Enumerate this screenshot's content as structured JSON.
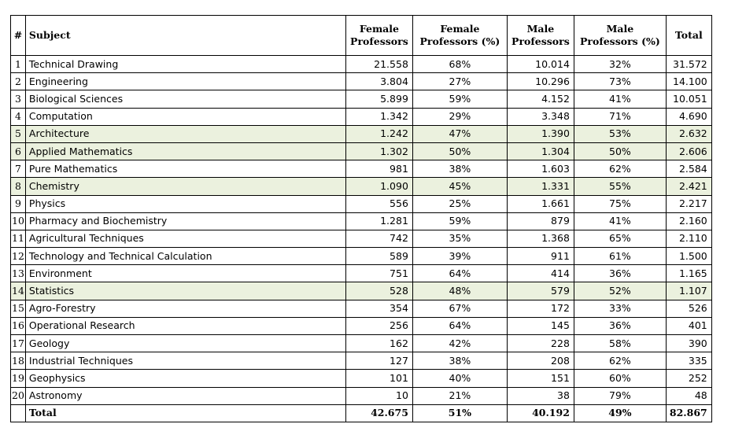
{
  "table": {
    "headers": {
      "index": "#",
      "subject": "Subject",
      "female_count_line1": "Female",
      "female_count_line2": "Professors",
      "female_pct_line1": "Female",
      "female_pct_line2": "Professors (%)",
      "male_count_line1": "Male",
      "male_count_line2": "Professors",
      "male_pct_line1": "Male",
      "male_pct_line2": "Professors (%)",
      "total": "Total"
    },
    "highlight_color": "#ebf1de",
    "rows": [
      {
        "num": "1",
        "subject": "Technical Drawing",
        "female": "21.558",
        "female_pct": "68%",
        "male": "10.014",
        "male_pct": "32%",
        "total": "31.572",
        "highlight": false
      },
      {
        "num": "2",
        "subject": "Engineering",
        "female": "3.804",
        "female_pct": "27%",
        "male": "10.296",
        "male_pct": "73%",
        "total": "14.100",
        "highlight": false
      },
      {
        "num": "3",
        "subject": "Biological Sciences",
        "female": "5.899",
        "female_pct": "59%",
        "male": "4.152",
        "male_pct": "41%",
        "total": "10.051",
        "highlight": false
      },
      {
        "num": "4",
        "subject": "Computation",
        "female": "1.342",
        "female_pct": "29%",
        "male": "3.348",
        "male_pct": "71%",
        "total": "4.690",
        "highlight": false
      },
      {
        "num": "5",
        "subject": "Architecture",
        "female": "1.242",
        "female_pct": "47%",
        "male": "1.390",
        "male_pct": "53%",
        "total": "2.632",
        "highlight": true
      },
      {
        "num": "6",
        "subject": "Applied Mathematics",
        "female": "1.302",
        "female_pct": "50%",
        "male": "1.304",
        "male_pct": "50%",
        "total": "2.606",
        "highlight": true
      },
      {
        "num": "7",
        "subject": "Pure Mathematics",
        "female": "981",
        "female_pct": "38%",
        "male": "1.603",
        "male_pct": "62%",
        "total": "2.584",
        "highlight": false
      },
      {
        "num": "8",
        "subject": "Chemistry",
        "female": "1.090",
        "female_pct": "45%",
        "male": "1.331",
        "male_pct": "55%",
        "total": "2.421",
        "highlight": true
      },
      {
        "num": "9",
        "subject": "Physics",
        "female": "556",
        "female_pct": "25%",
        "male": "1.661",
        "male_pct": "75%",
        "total": "2.217",
        "highlight": false
      },
      {
        "num": "10",
        "subject": "Pharmacy and Biochemistry",
        "female": "1.281",
        "female_pct": "59%",
        "male": "879",
        "male_pct": "41%",
        "total": "2.160",
        "highlight": false
      },
      {
        "num": "11",
        "subject": "Agricultural Techniques",
        "female": "742",
        "female_pct": "35%",
        "male": "1.368",
        "male_pct": "65%",
        "total": "2.110",
        "highlight": false
      },
      {
        "num": "12",
        "subject": "Technology and Technical Calculation",
        "female": "589",
        "female_pct": "39%",
        "male": "911",
        "male_pct": "61%",
        "total": "1.500",
        "highlight": false
      },
      {
        "num": "13",
        "subject": "Environment",
        "female": "751",
        "female_pct": "64%",
        "male": "414",
        "male_pct": "36%",
        "total": "1.165",
        "highlight": false
      },
      {
        "num": "14",
        "subject": "Statistics",
        "female": "528",
        "female_pct": "48%",
        "male": "579",
        "male_pct": "52%",
        "total": "1.107",
        "highlight": true
      },
      {
        "num": "15",
        "subject": "Agro-Forestry",
        "female": "354",
        "female_pct": "67%",
        "male": "172",
        "male_pct": "33%",
        "total": "526",
        "highlight": false
      },
      {
        "num": "16",
        "subject": "Operational Research",
        "female": "256",
        "female_pct": "64%",
        "male": "145",
        "male_pct": "36%",
        "total": "401",
        "highlight": false
      },
      {
        "num": "17",
        "subject": "Geology",
        "female": "162",
        "female_pct": "42%",
        "male": "228",
        "male_pct": "58%",
        "total": "390",
        "highlight": false
      },
      {
        "num": "18",
        "subject": "Industrial Techniques",
        "female": "127",
        "female_pct": "38%",
        "male": "208",
        "male_pct": "62%",
        "total": "335",
        "highlight": false
      },
      {
        "num": "19",
        "subject": "Geophysics",
        "female": "101",
        "female_pct": "40%",
        "male": "151",
        "male_pct": "60%",
        "total": "252",
        "highlight": false
      },
      {
        "num": "20",
        "subject": "Astronomy",
        "female": "10",
        "female_pct": "21%",
        "male": "38",
        "male_pct": "79%",
        "total": "48",
        "highlight": false
      }
    ],
    "total_row": {
      "label": "Total",
      "female": "42.675",
      "female_pct": "51%",
      "male": "40.192",
      "male_pct": "49%",
      "total": "82.867"
    }
  }
}
